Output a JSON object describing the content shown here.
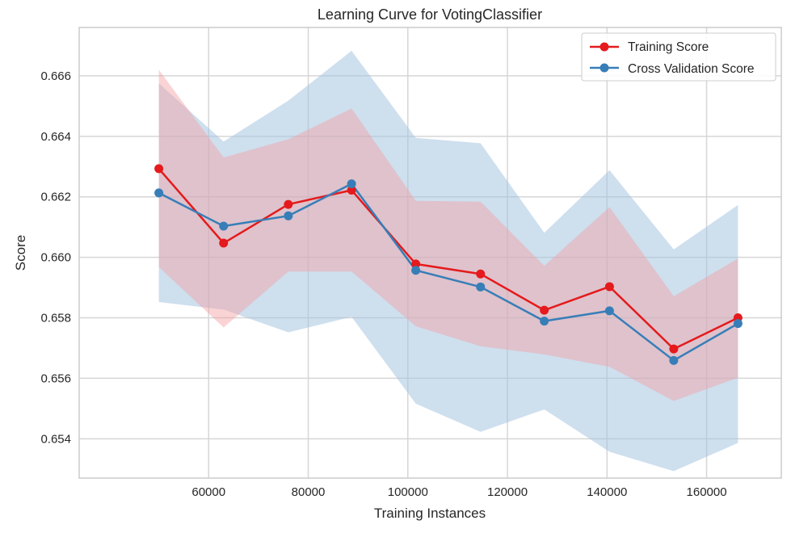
{
  "chart_data": {
    "type": "line",
    "title": "Learning Curve for VotingClassifier",
    "xlabel": "Training Instances",
    "ylabel": "Score",
    "xlim": [
      34000,
      175000
    ],
    "ylim": [
      0.6527,
      0.6676
    ],
    "xticks": [
      60000,
      80000,
      100000,
      120000,
      140000,
      160000
    ],
    "xtick_labels": [
      "60000",
      "80000",
      "100000",
      "120000",
      "140000",
      "160000"
    ],
    "yticks": [
      0.654,
      0.656,
      0.658,
      0.66,
      0.662,
      0.664,
      0.666
    ],
    "ytick_labels": [
      "0.654",
      "0.656",
      "0.658",
      "0.660",
      "0.662",
      "0.664",
      "0.666"
    ],
    "grid": true,
    "legend_position": "top-right",
    "x": [
      50000,
      63000,
      76000,
      88700,
      101600,
      114600,
      127400,
      140500,
      153400,
      166300
    ],
    "series": [
      {
        "name": "Training Score",
        "color": "#e41a1c",
        "band_color": "#f4a0a2",
        "values": [
          0.66293,
          0.66047,
          0.66175,
          0.66222,
          0.65978,
          0.65945,
          0.65825,
          0.65903,
          0.65697,
          0.658
        ],
        "band_upper": [
          0.6662,
          0.6633,
          0.6639,
          0.66492,
          0.66187,
          0.66184,
          0.65972,
          0.66166,
          0.65871,
          0.65996
        ],
        "band_lower": [
          0.65968,
          0.65768,
          0.65953,
          0.65953,
          0.65772,
          0.65706,
          0.65679,
          0.65638,
          0.65525,
          0.65602
        ]
      },
      {
        "name": "Cross Validation Score",
        "color": "#377eb8",
        "band_color": "#a6c4e0",
        "values": [
          0.66213,
          0.66103,
          0.66137,
          0.66243,
          0.65957,
          0.65902,
          0.65789,
          0.65823,
          0.65659,
          0.65781
        ],
        "band_upper": [
          0.66575,
          0.66383,
          0.66518,
          0.66683,
          0.66395,
          0.66377,
          0.66081,
          0.66288,
          0.66026,
          0.66173
        ],
        "band_lower": [
          0.65852,
          0.65827,
          0.65752,
          0.65803,
          0.65516,
          0.65423,
          0.65497,
          0.65357,
          0.65293,
          0.65386
        ]
      }
    ]
  }
}
